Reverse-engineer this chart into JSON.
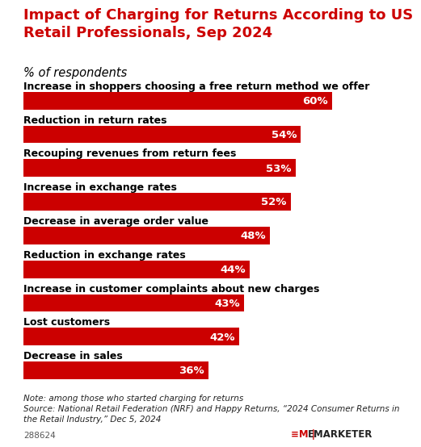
{
  "title": "Impact of Charging for Returns According to US\nRetail Professionals, Sep 2024",
  "subtitle": "% of respondents",
  "categories": [
    "Increase in shoppers choosing a free return method we offer",
    "Reduction in return rates",
    "Recouping revenues from return fees",
    "Increase in exchange rates",
    "Decrease in average order value",
    "Reduction in exchange rates",
    "Increase in customer complaints about new charges",
    "Lost customers",
    "Decrease in sales"
  ],
  "values": [
    60,
    54,
    53,
    52,
    48,
    44,
    43,
    42,
    36
  ],
  "bar_color": "#CC0000",
  "value_color_on_bar": "#FFFFFF",
  "value_color_outside": "#000000",
  "label_color": "#000000",
  "bg_color": "#FFFFFF",
  "title_color": "#CC0000",
  "subtitle_color": "#000000",
  "note": "Note: among those who started charging for returns\nSource: National Retail Federation (NRF) and Happy Returns, ‘2024 Consumer Returns in\nthe Retail Industry,’ Dec 5, 2024",
  "watermark": "288624",
  "xlim_max": 65,
  "title_fontsize": 13.0,
  "subtitle_fontsize": 10.5,
  "label_fontsize": 9.0,
  "value_fontsize": 9.5,
  "note_fontsize": 7.5
}
